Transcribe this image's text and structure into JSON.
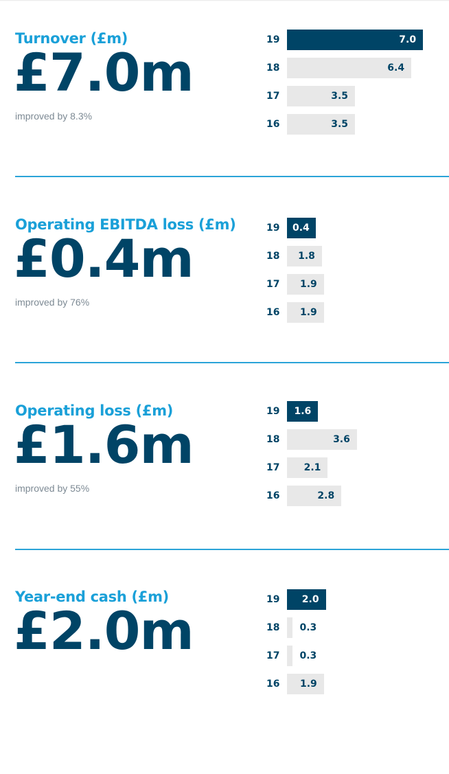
{
  "colors": {
    "title": "#1aa0d8",
    "value": "#004466",
    "bar_current": "#004466",
    "bar_past": "#e8e8e8",
    "divider": "#2aa3d8"
  },
  "chart_data": [
    {
      "type": "bar",
      "title": "Turnover (£m)",
      "headline": "£7.0m",
      "note": "improved by 8.3%",
      "categories": [
        "19",
        "18",
        "17",
        "16"
      ],
      "values": [
        7.0,
        6.4,
        3.5,
        3.5
      ],
      "labels": [
        "7.0",
        "6.4",
        "3.5",
        "3.5"
      ],
      "orientation": "horizontal"
    },
    {
      "type": "bar",
      "title": "Operating EBITDA loss (£m)",
      "headline": "£0.4m",
      "note": "improved by 76%",
      "categories": [
        "19",
        "18",
        "17",
        "16"
      ],
      "values": [
        0.4,
        1.8,
        1.9,
        1.9
      ],
      "labels": [
        "0.4",
        "1.8",
        "1.9",
        "1.9"
      ],
      "orientation": "horizontal"
    },
    {
      "type": "bar",
      "title": "Operating loss (£m)",
      "headline": "£1.6m",
      "note": "improved by 55%",
      "categories": [
        "19",
        "18",
        "17",
        "16"
      ],
      "values": [
        1.6,
        3.6,
        2.1,
        2.8
      ],
      "labels": [
        "1.6",
        "3.6",
        "2.1",
        "2.8"
      ],
      "orientation": "horizontal"
    },
    {
      "type": "bar",
      "title": "Year-end cash (£m)",
      "headline": "£2.0m",
      "note": "",
      "categories": [
        "19",
        "18",
        "17",
        "16"
      ],
      "values": [
        2.0,
        0.3,
        0.3,
        1.9
      ],
      "labels": [
        "2.0",
        "0.3",
        "0.3",
        "1.9"
      ],
      "orientation": "horizontal"
    }
  ]
}
